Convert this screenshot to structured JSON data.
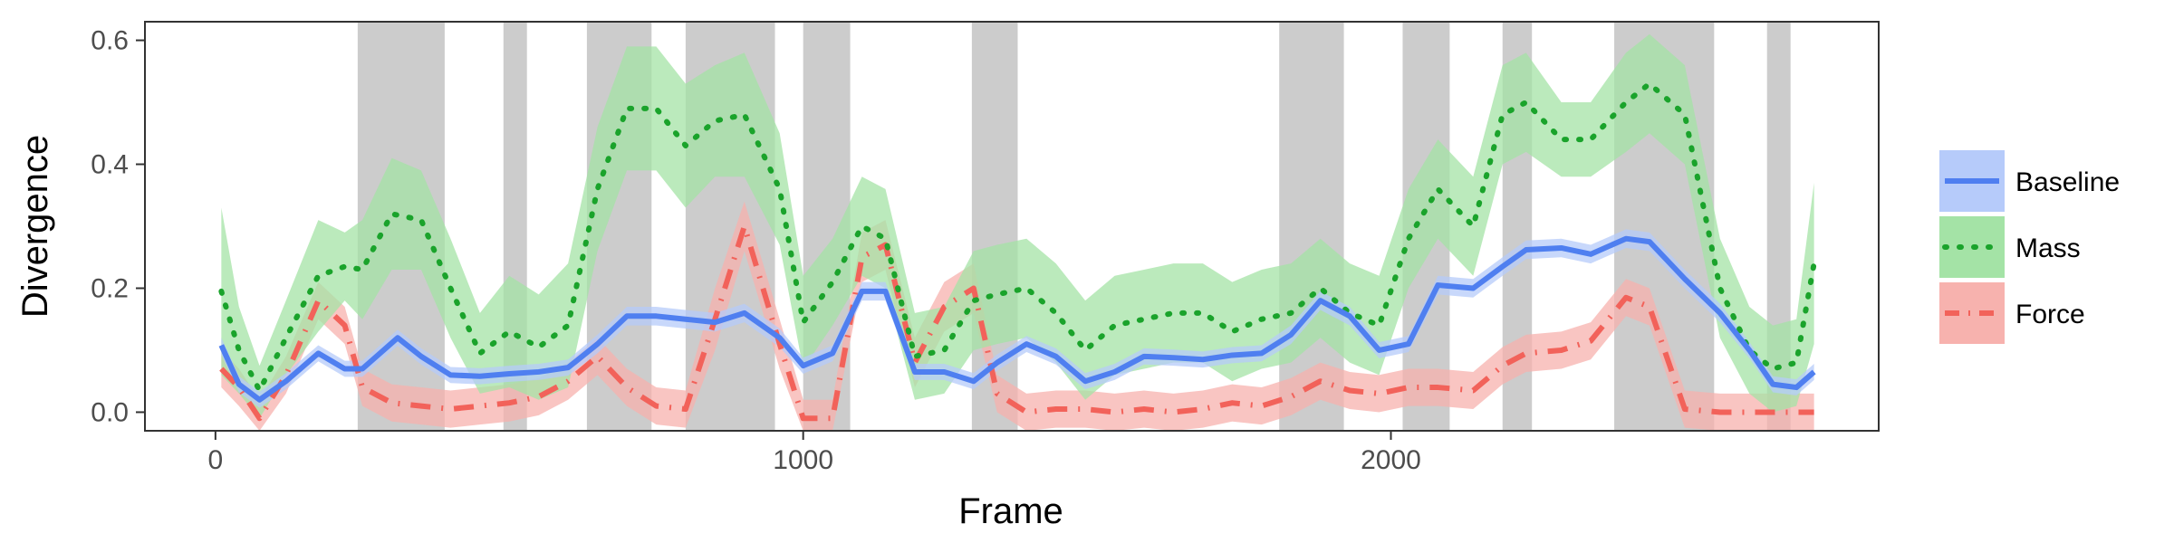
{
  "chart_data": {
    "type": "line",
    "xlabel": "Frame",
    "ylabel": "Divergence",
    "xlim": [
      -120,
      2830
    ],
    "ylim": [
      -0.03,
      0.63
    ],
    "x_ticks": [
      0,
      1000,
      2000
    ],
    "y_ticks": [
      0.0,
      0.2,
      0.4,
      0.6
    ],
    "x_tick_labels": [
      "0",
      "1000",
      "2000"
    ],
    "y_tick_labels": [
      "0.0",
      "0.2",
      "0.4",
      "0.6"
    ],
    "grid": false,
    "legend_position": "right",
    "shaded_intervals": [
      [
        242,
        390
      ],
      [
        490,
        530
      ],
      [
        632,
        742
      ],
      [
        800,
        952
      ],
      [
        1000,
        1080
      ],
      [
        1287,
        1365
      ],
      [
        1810,
        1920
      ],
      [
        2020,
        2100
      ],
      [
        2190,
        2240
      ],
      [
        2380,
        2550
      ],
      [
        2640,
        2680
      ]
    ],
    "colors": {
      "shade": "#cccccc",
      "panel_border": "#333333"
    },
    "series": [
      {
        "name": "Baseline",
        "color": "#4f7ff0",
        "band_color": "#b6cbfa",
        "line_style": "solid",
        "points": [
          [
            10,
            0.108,
            0.12,
            0.093
          ],
          [
            40,
            0.045,
            0.058,
            0.032
          ],
          [
            75,
            0.02,
            0.033,
            0.007
          ],
          [
            120,
            0.05,
            0.063,
            0.037
          ],
          [
            175,
            0.095,
            0.108,
            0.082
          ],
          [
            220,
            0.07,
            0.083,
            0.057
          ],
          [
            250,
            0.07,
            0.083,
            0.057
          ],
          [
            310,
            0.12,
            0.133,
            0.107
          ],
          [
            350,
            0.09,
            0.103,
            0.077
          ],
          [
            400,
            0.06,
            0.073,
            0.047
          ],
          [
            450,
            0.058,
            0.071,
            0.045
          ],
          [
            500,
            0.062,
            0.075,
            0.049
          ],
          [
            550,
            0.065,
            0.078,
            0.052
          ],
          [
            600,
            0.072,
            0.085,
            0.059
          ],
          [
            650,
            0.11,
            0.125,
            0.095
          ],
          [
            700,
            0.155,
            0.17,
            0.14
          ],
          [
            750,
            0.155,
            0.17,
            0.14
          ],
          [
            800,
            0.15,
            0.165,
            0.135
          ],
          [
            850,
            0.145,
            0.16,
            0.13
          ],
          [
            900,
            0.16,
            0.175,
            0.145
          ],
          [
            960,
            0.12,
            0.135,
            0.105
          ],
          [
            1000,
            0.075,
            0.088,
            0.062
          ],
          [
            1050,
            0.095,
            0.108,
            0.082
          ],
          [
            1100,
            0.195,
            0.21,
            0.18
          ],
          [
            1140,
            0.195,
            0.21,
            0.18
          ],
          [
            1190,
            0.065,
            0.078,
            0.052
          ],
          [
            1240,
            0.065,
            0.078,
            0.052
          ],
          [
            1290,
            0.05,
            0.063,
            0.037
          ],
          [
            1330,
            0.08,
            0.093,
            0.067
          ],
          [
            1380,
            0.11,
            0.123,
            0.097
          ],
          [
            1430,
            0.09,
            0.103,
            0.077
          ],
          [
            1480,
            0.05,
            0.063,
            0.037
          ],
          [
            1530,
            0.065,
            0.078,
            0.052
          ],
          [
            1580,
            0.09,
            0.103,
            0.077
          ],
          [
            1630,
            0.088,
            0.101,
            0.075
          ],
          [
            1680,
            0.085,
            0.098,
            0.072
          ],
          [
            1730,
            0.092,
            0.105,
            0.079
          ],
          [
            1780,
            0.095,
            0.108,
            0.082
          ],
          [
            1830,
            0.125,
            0.14,
            0.11
          ],
          [
            1880,
            0.18,
            0.195,
            0.165
          ],
          [
            1930,
            0.155,
            0.17,
            0.14
          ],
          [
            1980,
            0.1,
            0.113,
            0.087
          ],
          [
            2030,
            0.11,
            0.123,
            0.097
          ],
          [
            2080,
            0.205,
            0.22,
            0.19
          ],
          [
            2140,
            0.2,
            0.215,
            0.185
          ],
          [
            2190,
            0.235,
            0.25,
            0.22
          ],
          [
            2230,
            0.262,
            0.277,
            0.247
          ],
          [
            2290,
            0.265,
            0.28,
            0.25
          ],
          [
            2340,
            0.255,
            0.27,
            0.24
          ],
          [
            2400,
            0.28,
            0.295,
            0.265
          ],
          [
            2440,
            0.275,
            0.29,
            0.26
          ],
          [
            2500,
            0.215,
            0.23,
            0.2
          ],
          [
            2560,
            0.16,
            0.175,
            0.145
          ],
          [
            2610,
            0.1,
            0.113,
            0.087
          ],
          [
            2650,
            0.045,
            0.058,
            0.032
          ],
          [
            2690,
            0.04,
            0.053,
            0.027
          ],
          [
            2720,
            0.065,
            0.078,
            0.052
          ]
        ]
      },
      {
        "name": "Mass",
        "color": "#1aa32b",
        "band_color": "#a4e3a6",
        "line_style": "dotted",
        "points": [
          [
            10,
            0.195,
            0.33,
            0.06
          ],
          [
            40,
            0.1,
            0.17,
            0.03
          ],
          [
            75,
            0.035,
            0.075,
            -0.01
          ],
          [
            120,
            0.12,
            0.18,
            0.06
          ],
          [
            175,
            0.22,
            0.31,
            0.13
          ],
          [
            220,
            0.235,
            0.29,
            0.18
          ],
          [
            250,
            0.23,
            0.31,
            0.15
          ],
          [
            300,
            0.32,
            0.41,
            0.23
          ],
          [
            350,
            0.31,
            0.39,
            0.23
          ],
          [
            400,
            0.2,
            0.28,
            0.12
          ],
          [
            450,
            0.095,
            0.16,
            0.03
          ],
          [
            500,
            0.13,
            0.22,
            0.04
          ],
          [
            550,
            0.105,
            0.19,
            0.02
          ],
          [
            600,
            0.14,
            0.24,
            0.04
          ],
          [
            650,
            0.36,
            0.46,
            0.26
          ],
          [
            700,
            0.49,
            0.59,
            0.39
          ],
          [
            750,
            0.49,
            0.59,
            0.39
          ],
          [
            800,
            0.43,
            0.53,
            0.33
          ],
          [
            850,
            0.47,
            0.56,
            0.38
          ],
          [
            900,
            0.48,
            0.58,
            0.38
          ],
          [
            960,
            0.36,
            0.45,
            0.27
          ],
          [
            1000,
            0.145,
            0.22,
            0.07
          ],
          [
            1050,
            0.21,
            0.28,
            0.14
          ],
          [
            1100,
            0.3,
            0.38,
            0.22
          ],
          [
            1140,
            0.28,
            0.36,
            0.2
          ],
          [
            1190,
            0.09,
            0.16,
            0.02
          ],
          [
            1240,
            0.1,
            0.17,
            0.03
          ],
          [
            1290,
            0.18,
            0.26,
            0.1
          ],
          [
            1330,
            0.19,
            0.27,
            0.11
          ],
          [
            1380,
            0.2,
            0.28,
            0.12
          ],
          [
            1430,
            0.16,
            0.24,
            0.08
          ],
          [
            1480,
            0.1,
            0.18,
            0.02
          ],
          [
            1530,
            0.14,
            0.22,
            0.06
          ],
          [
            1580,
            0.15,
            0.23,
            0.07
          ],
          [
            1630,
            0.16,
            0.24,
            0.08
          ],
          [
            1680,
            0.16,
            0.24,
            0.08
          ],
          [
            1730,
            0.13,
            0.21,
            0.05
          ],
          [
            1780,
            0.15,
            0.23,
            0.07
          ],
          [
            1830,
            0.16,
            0.24,
            0.08
          ],
          [
            1880,
            0.2,
            0.28,
            0.12
          ],
          [
            1930,
            0.16,
            0.24,
            0.08
          ],
          [
            1980,
            0.14,
            0.22,
            0.06
          ],
          [
            2030,
            0.28,
            0.36,
            0.2
          ],
          [
            2080,
            0.36,
            0.44,
            0.28
          ],
          [
            2140,
            0.3,
            0.38,
            0.22
          ],
          [
            2190,
            0.48,
            0.56,
            0.4
          ],
          [
            2230,
            0.5,
            0.58,
            0.42
          ],
          [
            2290,
            0.44,
            0.5,
            0.38
          ],
          [
            2340,
            0.44,
            0.5,
            0.38
          ],
          [
            2400,
            0.5,
            0.58,
            0.42
          ],
          [
            2440,
            0.53,
            0.61,
            0.45
          ],
          [
            2500,
            0.48,
            0.56,
            0.4
          ],
          [
            2560,
            0.2,
            0.28,
            0.12
          ],
          [
            2610,
            0.1,
            0.17,
            0.03
          ],
          [
            2650,
            0.07,
            0.14,
            0.0
          ],
          [
            2690,
            0.08,
            0.15,
            0.01
          ],
          [
            2720,
            0.24,
            0.37,
            0.11
          ]
        ]
      },
      {
        "name": "Force",
        "color": "#f2625a",
        "band_color": "#f7b2ae",
        "line_style": "dashdot",
        "points": [
          [
            10,
            0.07,
            0.1,
            0.04
          ],
          [
            40,
            0.04,
            0.07,
            0.01
          ],
          [
            75,
            -0.01,
            0.02,
            -0.03
          ],
          [
            120,
            0.06,
            0.09,
            0.03
          ],
          [
            175,
            0.18,
            0.21,
            0.15
          ],
          [
            220,
            0.14,
            0.17,
            0.11
          ],
          [
            250,
            0.04,
            0.07,
            0.01
          ],
          [
            300,
            0.015,
            0.045,
            -0.015
          ],
          [
            350,
            0.01,
            0.04,
            -0.02
          ],
          [
            400,
            0.005,
            0.035,
            -0.025
          ],
          [
            450,
            0.01,
            0.04,
            -0.02
          ],
          [
            500,
            0.015,
            0.045,
            -0.015
          ],
          [
            550,
            0.025,
            0.055,
            -0.005
          ],
          [
            600,
            0.05,
            0.08,
            0.02
          ],
          [
            650,
            0.09,
            0.12,
            0.06
          ],
          [
            700,
            0.04,
            0.07,
            0.01
          ],
          [
            750,
            0.01,
            0.04,
            -0.02
          ],
          [
            800,
            0.005,
            0.035,
            -0.025
          ],
          [
            850,
            0.15,
            0.2,
            0.1
          ],
          [
            900,
            0.3,
            0.34,
            0.26
          ],
          [
            960,
            0.11,
            0.15,
            0.07
          ],
          [
            1000,
            -0.01,
            0.02,
            -0.03
          ],
          [
            1050,
            -0.01,
            0.02,
            -0.03
          ],
          [
            1100,
            0.25,
            0.29,
            0.21
          ],
          [
            1140,
            0.27,
            0.31,
            0.23
          ],
          [
            1190,
            0.08,
            0.12,
            0.04
          ],
          [
            1240,
            0.17,
            0.21,
            0.13
          ],
          [
            1290,
            0.2,
            0.24,
            0.16
          ],
          [
            1330,
            0.03,
            0.06,
            0.0
          ],
          [
            1380,
            0.0,
            0.03,
            -0.03
          ],
          [
            1430,
            0.005,
            0.035,
            -0.025
          ],
          [
            1480,
            0.005,
            0.035,
            -0.025
          ],
          [
            1530,
            0.0,
            0.03,
            -0.03
          ],
          [
            1580,
            0.005,
            0.035,
            -0.025
          ],
          [
            1630,
            0.0,
            0.03,
            -0.03
          ],
          [
            1680,
            0.005,
            0.035,
            -0.025
          ],
          [
            1730,
            0.015,
            0.045,
            -0.015
          ],
          [
            1780,
            0.01,
            0.04,
            -0.02
          ],
          [
            1830,
            0.025,
            0.055,
            -0.005
          ],
          [
            1880,
            0.05,
            0.08,
            0.02
          ],
          [
            1930,
            0.035,
            0.065,
            0.005
          ],
          [
            1980,
            0.03,
            0.06,
            0.0
          ],
          [
            2030,
            0.04,
            0.07,
            0.01
          ],
          [
            2080,
            0.04,
            0.07,
            0.01
          ],
          [
            2140,
            0.035,
            0.065,
            0.005
          ],
          [
            2190,
            0.075,
            0.105,
            0.045
          ],
          [
            2230,
            0.095,
            0.125,
            0.065
          ],
          [
            2290,
            0.1,
            0.13,
            0.07
          ],
          [
            2340,
            0.115,
            0.145,
            0.085
          ],
          [
            2400,
            0.185,
            0.215,
            0.155
          ],
          [
            2440,
            0.17,
            0.2,
            0.14
          ],
          [
            2500,
            0.005,
            0.035,
            -0.025
          ],
          [
            2560,
            0.0,
            0.03,
            -0.03
          ],
          [
            2610,
            0.0,
            0.03,
            -0.03
          ],
          [
            2650,
            0.0,
            0.03,
            -0.03
          ],
          [
            2690,
            0.0,
            0.03,
            -0.03
          ],
          [
            2720,
            0.0,
            0.03,
            -0.03
          ]
        ]
      }
    ]
  }
}
